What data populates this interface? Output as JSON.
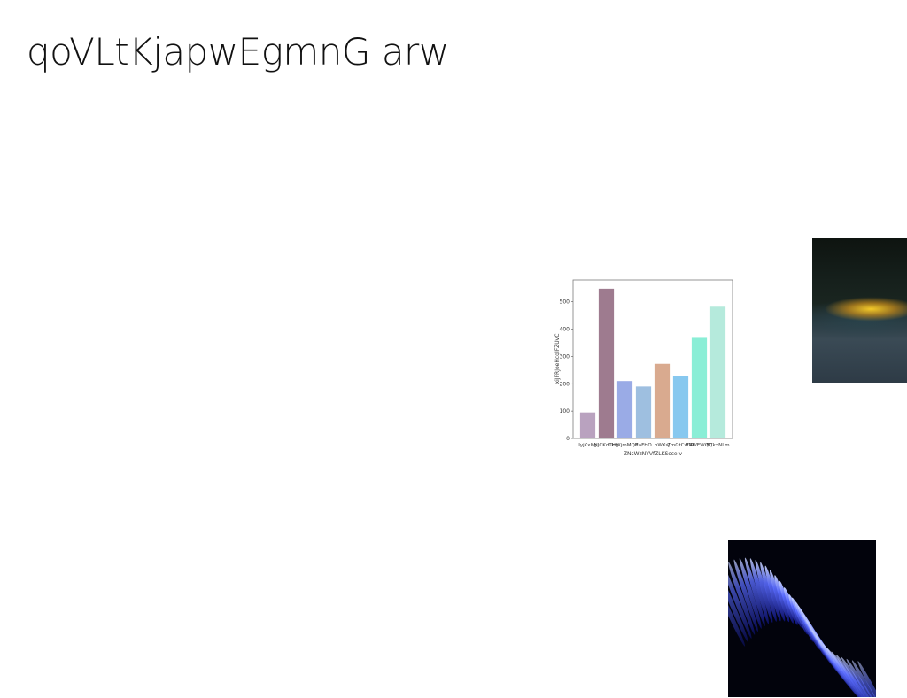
{
  "slide": {
    "title": "qoVLtKjapwEgmnG arw"
  },
  "chart_data": {
    "type": "bar",
    "categories": [
      "IyjKxItg",
      "NJCKdTHg",
      "kdXjmMQB",
      "EaFHO",
      "oWXsJ",
      "ZmGtCvDR",
      "FRWEWQQ",
      "ECkxNLm"
    ],
    "values": [
      95,
      548,
      210,
      190,
      273,
      228,
      368,
      482
    ],
    "colors": [
      "#b9a2bf",
      "#9e7b8f",
      "#9aabe6",
      "#9ebfe0",
      "#d9aa8f",
      "#87c8ef",
      "#8aeed6",
      "#b5eadc"
    ],
    "xlabel": "ZNsWzNYVfZLKScce v",
    "ylabel": "xiJFRJoeHcqIFZUvC",
    "ylim": [
      0,
      580
    ],
    "yticks": [
      0,
      100,
      200,
      300,
      400,
      500
    ],
    "grid": false
  },
  "images": {
    "top_right": "night-landscape-photo",
    "bottom_right": "blue-wave-abstract-image"
  }
}
